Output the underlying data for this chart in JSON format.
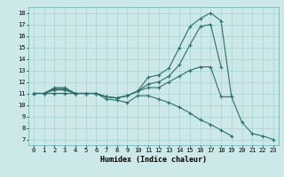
{
  "xlabel": "Humidex (Indice chaleur)",
  "bg_color": "#cce8e8",
  "line_color": "#2d6e6e",
  "xlim": [
    -0.5,
    23.5
  ],
  "ylim": [
    6.5,
    18.5
  ],
  "xticks": [
    0,
    1,
    2,
    3,
    4,
    5,
    6,
    7,
    8,
    9,
    10,
    11,
    12,
    13,
    14,
    15,
    16,
    17,
    18,
    19,
    20,
    21,
    22,
    23
  ],
  "yticks": [
    7,
    8,
    9,
    10,
    11,
    12,
    13,
    14,
    15,
    16,
    17,
    18
  ],
  "series": {
    "line1": {
      "x": [
        0,
        1,
        2,
        3,
        4,
        5,
        6,
        7,
        8,
        9,
        10,
        11,
        12,
        13,
        14,
        15,
        16,
        17,
        18,
        19,
        20,
        21,
        22,
        23
      ],
      "y": [
        11,
        11,
        11.5,
        11.5,
        11,
        11,
        11,
        10.7,
        10.6,
        10.8,
        11.2,
        12.4,
        12.6,
        13.2,
        15.0,
        16.8,
        17.5,
        18.0,
        17.3,
        10.7,
        8.5,
        7.5,
        7.3,
        7.0
      ]
    },
    "line2": {
      "x": [
        0,
        1,
        2,
        3,
        4,
        5,
        6,
        7,
        8,
        9,
        10,
        11,
        12,
        13,
        14,
        15,
        16,
        17,
        18
      ],
      "y": [
        11,
        11,
        11.4,
        11.4,
        11,
        11,
        11,
        10.7,
        10.6,
        10.8,
        11.2,
        11.8,
        12.0,
        12.5,
        13.5,
        15.2,
        16.8,
        17.0,
        13.3
      ]
    },
    "line3": {
      "x": [
        0,
        1,
        2,
        3,
        4,
        5,
        6,
        7,
        8,
        9,
        10,
        11,
        12,
        13,
        14,
        15,
        16,
        17,
        18,
        19
      ],
      "y": [
        11,
        11,
        11.3,
        11.3,
        11,
        11,
        11,
        10.7,
        10.6,
        10.8,
        11.2,
        11.5,
        11.5,
        12.0,
        12.5,
        13.0,
        13.3,
        13.3,
        10.7,
        10.7
      ]
    },
    "line4": {
      "x": [
        0,
        1,
        2,
        3,
        4,
        5,
        6,
        7,
        8,
        9,
        10,
        11,
        12,
        13,
        14,
        15,
        16,
        17,
        18,
        19,
        20,
        21,
        22,
        23
      ],
      "y": [
        11,
        11,
        11,
        11,
        11,
        11,
        11,
        10.5,
        10.4,
        10.2,
        10.8,
        10.8,
        10.5,
        10.2,
        9.8,
        9.3,
        8.7,
        8.3,
        7.8,
        7.3,
        null,
        null,
        null,
        null
      ]
    }
  }
}
